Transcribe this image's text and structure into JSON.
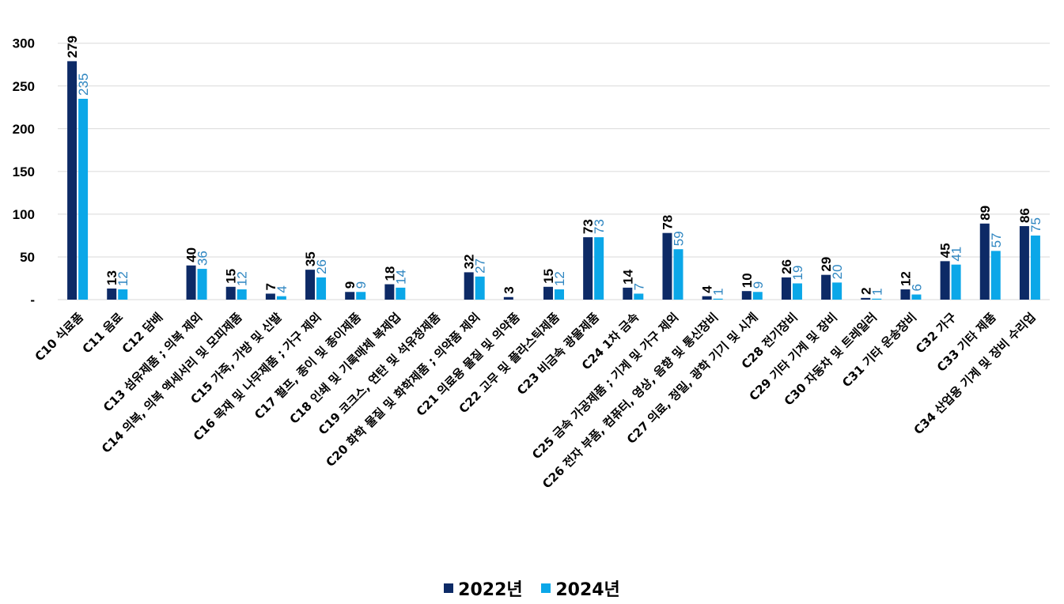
{
  "chart_data": {
    "type": "bar",
    "title": "",
    "xlabel": "",
    "ylabel": "",
    "ylim": [
      0,
      300
    ],
    "yticks": [
      "-",
      "50",
      "100",
      "150",
      "200",
      "250",
      "300"
    ],
    "grid": true,
    "legend_position": "bottom",
    "categories": [
      "C10 식료품",
      "C11 음료",
      "C12 담배",
      "C13 섬유제품 ; 의복 제외",
      "C14 의복, 의복 액세서리 및 모피제품",
      "C15 가죽, 가방 및 신발",
      "C16 목재 및 나무제품 ; 가구 제외",
      "C17 펄프, 종이 및 종이제품",
      "C18 인쇄 및 기록매체 복제업",
      "C19 코크스, 연탄 및 석유정제품",
      "C20 화학 물질 및 화학제품 ; 의약품 제외",
      "C21 의료용 물질 및 의약품",
      "C22 고무 및 플라스틱제품",
      "C23 비금속 광물제품",
      "C24 1차 금속",
      "C25 금속 가공제품 ; 기계 및 가구 제외",
      "C26 전자 부품, 컴퓨터, 영상, 음향 및 통신장비",
      "C27 의료, 정밀, 광학 기기 및 시계",
      "C28 전기장비",
      "C29 기타 기계 및 장비",
      "C30 자동차 및 트레일러",
      "C31 기타 운송장비",
      "C32 가구",
      "C33 기타 제품",
      "C34 산업용 기계 및 장비 수리업"
    ],
    "series": [
      {
        "name": "2022년",
        "color": "#0D2A66",
        "values": [
          279,
          13,
          null,
          40,
          15,
          7,
          35,
          9,
          18,
          null,
          32,
          3,
          15,
          73,
          14,
          78,
          4,
          10,
          26,
          29,
          2,
          12,
          45,
          89,
          86
        ]
      },
      {
        "name": "2024년",
        "color": "#0BA7E8",
        "values": [
          235,
          12,
          null,
          36,
          12,
          4,
          26,
          9,
          14,
          null,
          27,
          null,
          12,
          73,
          7,
          59,
          1,
          9,
          19,
          20,
          1,
          6,
          41,
          57,
          75
        ]
      }
    ]
  }
}
